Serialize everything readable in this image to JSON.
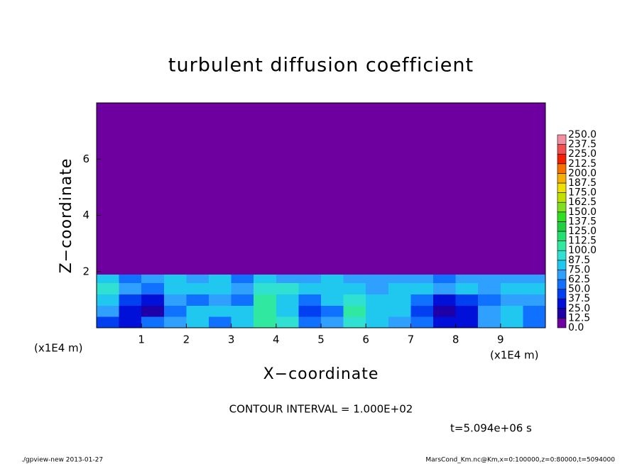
{
  "chart_data": {
    "type": "contour",
    "title": "turbulent diffusion coefficient",
    "x_label": "X−coordinate",
    "y_label": "Z−coordinate",
    "x_unit": "(x1E4 m)",
    "y_unit": "(x1E4 m)",
    "contour_note": "CONTOUR INTERVAL = 1.000E+02",
    "time_note": "t=5.094e+06 s",
    "footer_left": "./gpview-new   2013-01-27",
    "footer_right": "MarsCond_Km.nc@Km,x=0:100000,z=0:80000,t=5094000",
    "xlim": [
      0,
      10
    ],
    "ylim": [
      0,
      8
    ],
    "xticks": [
      1,
      2,
      3,
      4,
      5,
      6,
      7,
      8,
      9
    ],
    "yticks": [
      2,
      4,
      6
    ],
    "x_edges": [
      0,
      0.5,
      1,
      1.5,
      2,
      2.5,
      3,
      3.5,
      4,
      4.5,
      5,
      5.5,
      6,
      6.5,
      7,
      7.5,
      8,
      8.5,
      9,
      9.5,
      10
    ],
    "z_edges": [
      0,
      0.4,
      0.8,
      1.2,
      1.6,
      1.9,
      8
    ],
    "values": [
      [
        40,
        25,
        60,
        70,
        80,
        50,
        75,
        100,
        90,
        60,
        70,
        95,
        80,
        70,
        60,
        30,
        30,
        70,
        85,
        50
      ],
      [
        70,
        30,
        20,
        60,
        75,
        75,
        75,
        110,
        80,
        40,
        60,
        100,
        80,
        75,
        40,
        20,
        30,
        70,
        80,
        60
      ],
      [
        80,
        40,
        25,
        70,
        60,
        65,
        60,
        100,
        75,
        50,
        80,
        90,
        80,
        85,
        60,
        30,
        40,
        60,
        70,
        70
      ],
      [
        90,
        70,
        60,
        80,
        75,
        80,
        70,
        90,
        90,
        80,
        85,
        80,
        70,
        85,
        80,
        70,
        75,
        70,
        80,
        80
      ],
      [
        75,
        60,
        70,
        75,
        70,
        75,
        60,
        75,
        70,
        70,
        75,
        70,
        65,
        70,
        70,
        60,
        70,
        70,
        70,
        65
      ],
      [
        0,
        0,
        0,
        0,
        0,
        0,
        0,
        0,
        0,
        0,
        0,
        0,
        0,
        0,
        0,
        0,
        0,
        0,
        0,
        0
      ]
    ],
    "colorbar_ticks": [
      {
        "value": 0,
        "label": "0.0"
      },
      {
        "value": 12.5,
        "label": "12.5"
      },
      {
        "value": 25,
        "label": "25.0"
      },
      {
        "value": 37.5,
        "label": "37.5"
      },
      {
        "value": 50,
        "label": "50.0"
      },
      {
        "value": 62.5,
        "label": "62.5"
      },
      {
        "value": 75,
        "label": "75.0"
      },
      {
        "value": 87.5,
        "label": "87.5"
      },
      {
        "value": 100,
        "label": "100.0"
      },
      {
        "value": 112.5,
        "label": "112.5"
      },
      {
        "value": 125,
        "label": "125.0"
      },
      {
        "value": 137.5,
        "label": "137.5"
      },
      {
        "value": 150,
        "label": "150.0"
      },
      {
        "value": 162.5,
        "label": "162.5"
      },
      {
        "value": 175,
        "label": "175.0"
      },
      {
        "value": 187.5,
        "label": "187.5"
      },
      {
        "value": 200,
        "label": "200.0"
      },
      {
        "value": 212.5,
        "label": "212.5"
      },
      {
        "value": 225,
        "label": "225.0"
      },
      {
        "value": 237.5,
        "label": "237.5"
      },
      {
        "value": 250,
        "label": "250.0"
      }
    ],
    "colors": [
      "#6e00a0",
      "#1e00a8",
      "#0010d8",
      "#0040f0",
      "#1070ff",
      "#30a0ff",
      "#20c8f0",
      "#30e0d0",
      "#30e8a0",
      "#20e070",
      "#20d040",
      "#30e020",
      "#80e020",
      "#c0e000",
      "#f0e000",
      "#f8b000",
      "#f87000",
      "#f02000",
      "#f05050",
      "#f090a0"
    ]
  }
}
